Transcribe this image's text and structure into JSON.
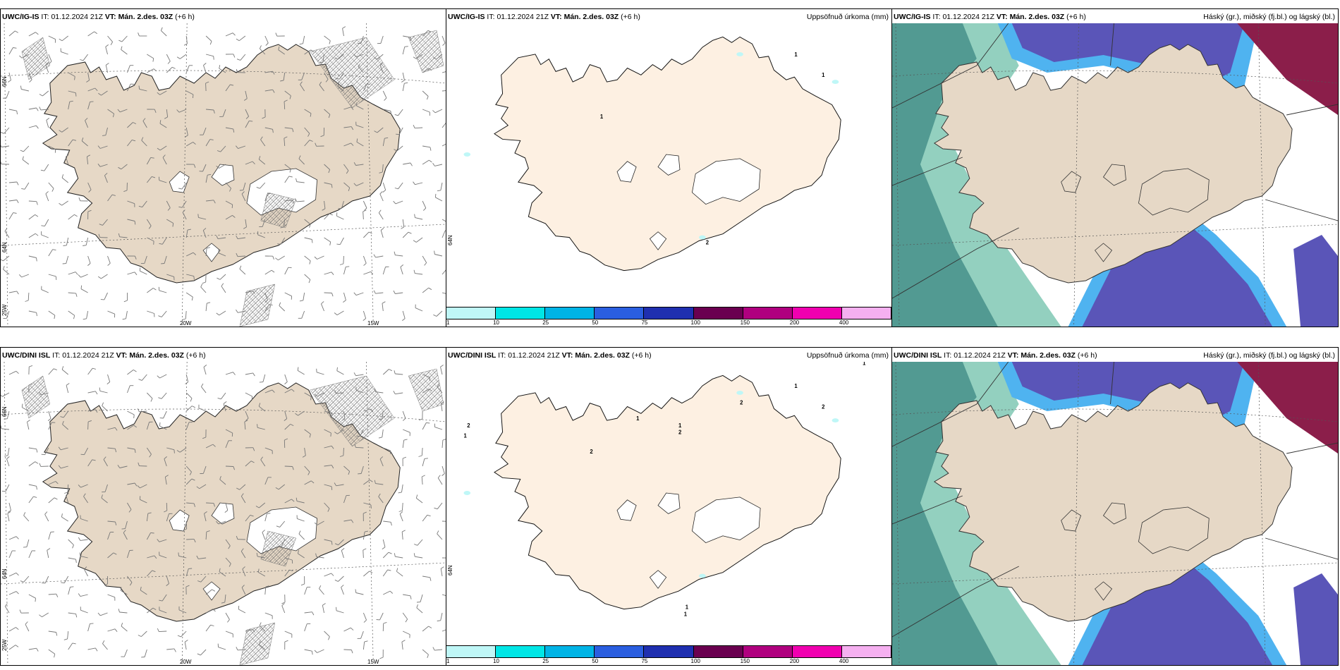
{
  "rows": [
    {
      "model": "UWC/IG-IS",
      "it_label": "IT:",
      "it_value": "01.12.2024 21Z",
      "vt_label": "VT:",
      "vt_value": "Mán. 2.des. 03Z",
      "lead": "(+6 h)"
    },
    {
      "model": "UWC/DINI ISL",
      "it_label": "IT:",
      "it_value": "01.12.2024 21Z",
      "vt_label": "VT:",
      "vt_value": "Mán. 2.des. 03Z",
      "lead": "(+6 h)"
    }
  ],
  "panel_titles": {
    "precip": "Uppsöfnuð úrkoma (mm)",
    "clouds": "Háský (gr.), miðský (fj.bl.) og lágský (bl.)"
  },
  "axis_labels": {
    "lat_66": "66N",
    "lat_64": "64N",
    "lon_25": "25W",
    "lon_20": "20W",
    "lon_15": "15W",
    "precip_lat": "64N"
  },
  "precip_scale": {
    "ticks": [
      "1",
      "10",
      "25",
      "50",
      "75",
      "100",
      "150",
      "200",
      "400"
    ],
    "colors": [
      "#bff7f7",
      "#00e6e6",
      "#00b4e6",
      "#2a5ee0",
      "#1f2fb0",
      "#6a0050",
      "#b0007f",
      "#f000b0",
      "#f5b0f0"
    ]
  },
  "precip_labels_top": [
    "1",
    "1",
    "1",
    "2"
  ],
  "precip_labels_bottom": [
    "1",
    "2",
    "2",
    "1",
    "1",
    "2",
    "2",
    "2",
    "1",
    "1",
    "1",
    "1"
  ],
  "colors": {
    "land": "#e6d8c6",
    "land_precip": "#fdf0e2",
    "high_cloud": "#8b1e4a",
    "mid_cloud": "#5a55b8",
    "mid_cloud_edge": "#4fb3f0",
    "low_cloud": "#3ba98a"
  }
}
